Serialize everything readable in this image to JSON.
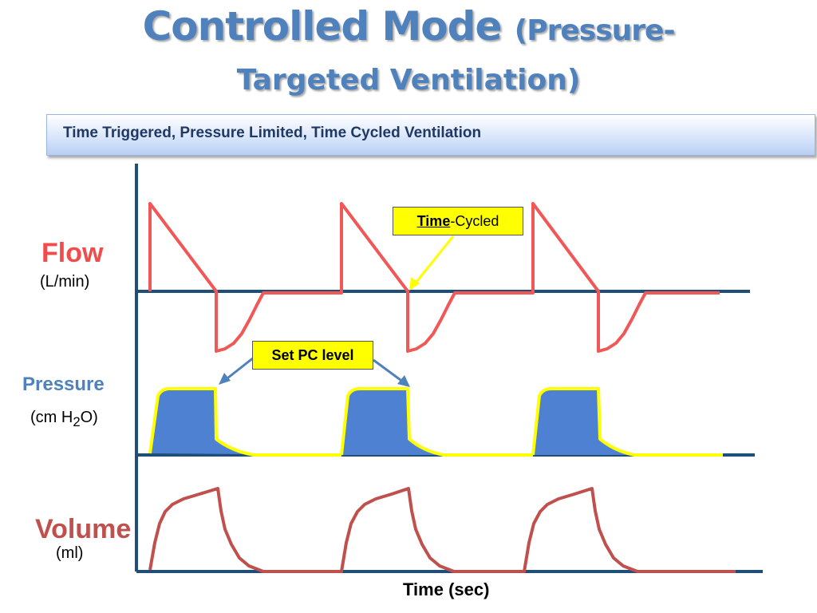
{
  "title": {
    "line1_main": "Controlled Mode",
    "line1_paren": "(Pressure-",
    "line2": "Targeted Ventilation)"
  },
  "subtitle": "Time Triggered, Pressure Limited, Time Cycled Ventilation",
  "labels": {
    "flow": "Flow",
    "flow_unit": "(L/min)",
    "pressure": "Pressure",
    "pressure_unit_pre": "(cm H",
    "pressure_unit_sub": "2",
    "pressure_unit_post": "O)",
    "volume": "Volume",
    "volume_unit": "(ml)",
    "time": "Time (sec)"
  },
  "callouts": {
    "time_cycled_underlined": "Time",
    "time_cycled_rest": "-Cycled",
    "set_pc_level": "Set PC level"
  },
  "colors": {
    "flow": "#f25757",
    "pressure_fill": "#4f81d2",
    "pressure_outline": "#ffff00",
    "volume": "#c0504d",
    "axis": "#1f4e79",
    "arrow_pc": "#4f81bd",
    "arrow_time": "#ffff00"
  }
}
